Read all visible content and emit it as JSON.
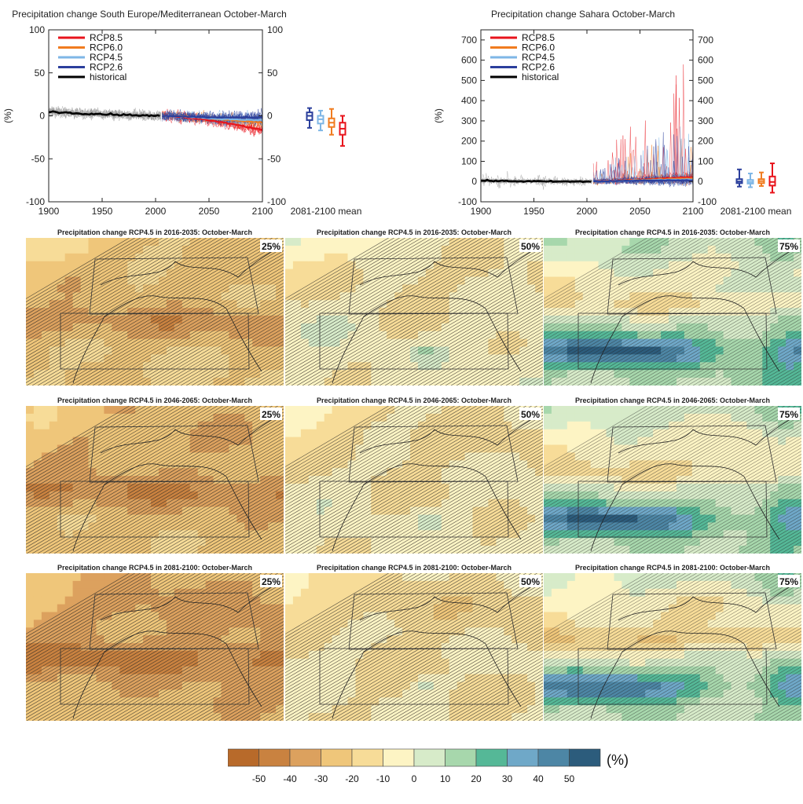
{
  "chart_data": [
    {
      "type": "line",
      "title": "Precipitation change South Europe/Mediterranean October-March",
      "ylabel": "(%)",
      "xlim": [
        1900,
        2100
      ],
      "ylim": [
        -100,
        100
      ],
      "xticks": [
        1900,
        1950,
        2000,
        2050,
        2100
      ],
      "yticks": [
        -100,
        -50,
        0,
        50,
        100
      ],
      "legend_position": "top-left",
      "grid": false,
      "series": [
        {
          "name": "RCP8.5",
          "color": "#e8141c",
          "x": [
            2006,
            2030,
            2050,
            2070,
            2090,
            2100
          ],
          "values": [
            0,
            -2,
            -5,
            -9,
            -14,
            -16
          ]
        },
        {
          "name": "RCP6.0",
          "color": "#f07c20",
          "x": [
            2006,
            2030,
            2050,
            2070,
            2090,
            2100
          ],
          "values": [
            0,
            -1,
            -3,
            -5,
            -7,
            -8
          ]
        },
        {
          "name": "RCP4.5",
          "color": "#7eb6e6",
          "x": [
            2006,
            2030,
            2050,
            2070,
            2090,
            2100
          ],
          "values": [
            0,
            -1,
            -3,
            -4,
            -5,
            -5
          ]
        },
        {
          "name": "RCP2.6",
          "color": "#2b3f9c",
          "x": [
            2006,
            2030,
            2050,
            2070,
            2090,
            2100
          ],
          "values": [
            0,
            -1,
            -2,
            -2,
            -2,
            -2
          ]
        },
        {
          "name": "historical",
          "color": "#000000",
          "x": [
            1900,
            1925,
            1950,
            1975,
            2000,
            2005
          ],
          "values": [
            5,
            3,
            2,
            1,
            0,
            0
          ]
        }
      ],
      "boxplot_label": "2081-2100 mean",
      "boxplots": [
        {
          "series": "RCP2.6",
          "color": "#2b3f9c",
          "min": -14,
          "q1": -5,
          "median": 0,
          "q3": 4,
          "max": 9
        },
        {
          "series": "RCP4.5",
          "color": "#7eb6e6",
          "min": -17,
          "q1": -9,
          "median": -4,
          "q3": 0,
          "max": 6
        },
        {
          "series": "RCP6.0",
          "color": "#f07c20",
          "min": -22,
          "q1": -13,
          "median": -8,
          "q3": -3,
          "max": 8
        },
        {
          "series": "RCP8.5",
          "color": "#e8141c",
          "min": -35,
          "q1": -22,
          "median": -15,
          "q3": -8,
          "max": 0
        }
      ]
    },
    {
      "type": "line",
      "title": "Precipitation change Sahara October-March",
      "ylabel": "(%)",
      "xlim": [
        1900,
        2100
      ],
      "ylim": [
        -100,
        750
      ],
      "xticks": [
        1900,
        1950,
        2000,
        2050,
        2100
      ],
      "yticks": [
        -100,
        0,
        100,
        200,
        300,
        400,
        500,
        600,
        700
      ],
      "legend_position": "top-left",
      "grid": false,
      "series": [
        {
          "name": "RCP8.5",
          "color": "#e8141c",
          "x": [
            2006,
            2030,
            2050,
            2070,
            2090,
            2100
          ],
          "values": [
            0,
            5,
            10,
            15,
            20,
            22
          ]
        },
        {
          "name": "RCP6.0",
          "color": "#f07c20",
          "x": [
            2006,
            2030,
            2050,
            2070,
            2090,
            2100
          ],
          "values": [
            0,
            4,
            8,
            12,
            15,
            16
          ]
        },
        {
          "name": "RCP4.5",
          "color": "#7eb6e6",
          "x": [
            2006,
            2030,
            2050,
            2070,
            2090,
            2100
          ],
          "values": [
            0,
            3,
            6,
            8,
            10,
            10
          ]
        },
        {
          "name": "RCP2.6",
          "color": "#2b3f9c",
          "x": [
            2006,
            2030,
            2050,
            2070,
            2090,
            2100
          ],
          "values": [
            0,
            3,
            5,
            6,
            6,
            6
          ]
        },
        {
          "name": "historical",
          "color": "#000000",
          "x": [
            1900,
            1925,
            1950,
            1975,
            2000,
            2005
          ],
          "values": [
            5,
            2,
            1,
            0,
            0,
            0
          ]
        }
      ],
      "boxplot_label": "2081-2100 mean",
      "boxplots": [
        {
          "series": "RCP2.6",
          "color": "#2b3f9c",
          "min": -25,
          "q1": -8,
          "median": 0,
          "q3": 12,
          "max": 60
        },
        {
          "series": "RCP4.5",
          "color": "#7eb6e6",
          "min": -28,
          "q1": -10,
          "median": -2,
          "q3": 8,
          "max": 40
        },
        {
          "series": "RCP6.0",
          "color": "#f07c20",
          "min": -22,
          "q1": -8,
          "median": 2,
          "q3": 12,
          "max": 45
        },
        {
          "series": "RCP8.5",
          "color": "#e8141c",
          "min": -55,
          "q1": -20,
          "median": -2,
          "q3": 25,
          "max": 90
        }
      ]
    },
    {
      "type": "heatmap",
      "maps": [
        {
          "title": "Precipitation change RCP4.5 in 2016-2035: October-March",
          "percentile": "25%"
        },
        {
          "title": "Precipitation change RCP4.5 in 2016-2035: October-March",
          "percentile": "50%"
        },
        {
          "title": "Precipitation change RCP4.5 in 2016-2035: October-March",
          "percentile": "75%"
        },
        {
          "title": "Precipitation change RCP4.5 in 2046-2065: October-March",
          "percentile": "25%"
        },
        {
          "title": "Precipitation change RCP4.5 in 2046-2065: October-March",
          "percentile": "50%"
        },
        {
          "title": "Precipitation change RCP4.5 in 2046-2065: October-March",
          "percentile": "75%"
        },
        {
          "title": "Precipitation change RCP4.5 in 2081-2100: October-March",
          "percentile": "25%"
        },
        {
          "title": "Precipitation change RCP4.5 in 2081-2100: October-March",
          "percentile": "50%"
        },
        {
          "title": "Precipitation change RCP4.5 in 2081-2100: October-March",
          "percentile": "75%"
        }
      ],
      "colorbar": {
        "unit": "(%)",
        "ticks": [
          "-50",
          "-40",
          "-30",
          "-20",
          "-10",
          "0",
          "10",
          "20",
          "30",
          "40",
          "50"
        ],
        "colors": [
          "#b86a2a",
          "#c98240",
          "#dca15e",
          "#efc67a",
          "#f7dc98",
          "#fdf4c4",
          "#d7ebc9",
          "#a7d7ac",
          "#55b897",
          "#6fa8c8",
          "#4d86a5",
          "#2c5c7c"
        ]
      }
    }
  ]
}
